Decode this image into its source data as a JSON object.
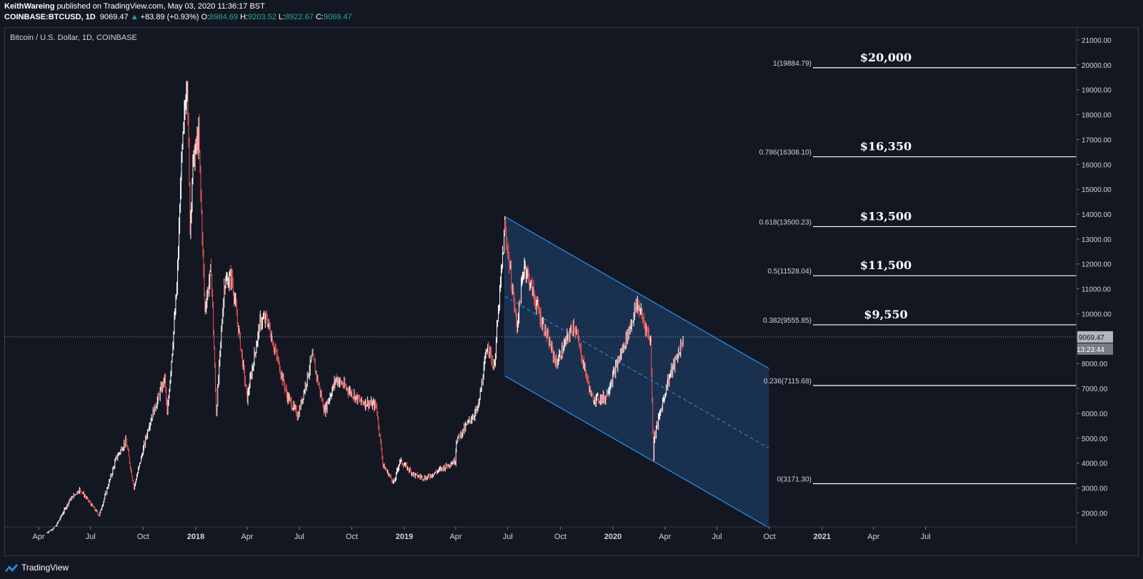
{
  "header": {
    "author": "KeithWareing",
    "published": "published on TradingView.com, May 03, 2020 11:36:17 BST",
    "symbol": "COINBASE:BTCUSD, 1D",
    "last": "9069.47",
    "change": "+83.89 (+0.93%)",
    "o_label": "O:",
    "o_value": "8984.69",
    "h_label": "H:",
    "h_value": "9203.52",
    "l_label": "L:",
    "l_value": "8922.67",
    "c_label": "C:",
    "c_value": "9069.47"
  },
  "brand": {
    "name": "TradingView"
  },
  "colors": {
    "background": "#131722",
    "candle_up": "#ffffff",
    "candle_down": "#ef5350",
    "channel_line": "#2196f3",
    "channel_fill": "#1e3a5f",
    "fib_line": "#ffffff",
    "text": "#d1d4dc"
  },
  "chart_data": {
    "type": "line",
    "title": "Bitcoin / U.S. Dollar, 1D, COINBASE",
    "xlabel": "",
    "ylabel": "",
    "ylim": [
      1200,
      21500
    ],
    "grid": false,
    "x_ticks": [
      "Apr",
      "Jul",
      "Oct",
      "2018",
      "Apr",
      "Jul",
      "Oct",
      "2019",
      "Apr",
      "Jul",
      "Oct",
      "2020",
      "Apr",
      "Jul",
      "Oct",
      "2021",
      "Apr",
      "Jul"
    ],
    "x_tick_dates": [
      "2017-04-01",
      "2017-07-01",
      "2017-10-01",
      "2018-01-01",
      "2018-04-01",
      "2018-07-01",
      "2018-10-01",
      "2019-01-01",
      "2019-04-01",
      "2019-07-01",
      "2019-10-01",
      "2020-01-01",
      "2020-04-01",
      "2020-07-01",
      "2020-10-01",
      "2021-01-01",
      "2021-04-01",
      "2021-07-01"
    ],
    "y_ticks": [
      "21000.00",
      "20000.00",
      "19000.00",
      "18000.00",
      "17000.00",
      "16000.00",
      "15000.00",
      "14000.00",
      "13000.00",
      "12000.00",
      "11000.00",
      "10000.00",
      "9000.00",
      "8000.00",
      "7000.00",
      "6000.00",
      "5000.00",
      "4000.00",
      "3000.00",
      "2000.00"
    ],
    "current_price": {
      "label": "9069.47",
      "countdown": "13:23:44",
      "value": 9069.47
    },
    "series": [
      {
        "name": "BTCUSD",
        "points": [
          [
            "2017-04-15",
            1200
          ],
          [
            "2017-05-01",
            1450
          ],
          [
            "2017-05-25",
            2500
          ],
          [
            "2017-06-12",
            2950
          ],
          [
            "2017-07-16",
            1900
          ],
          [
            "2017-08-15",
            4200
          ],
          [
            "2017-09-01",
            4900
          ],
          [
            "2017-09-15",
            3000
          ],
          [
            "2017-10-12",
            5600
          ],
          [
            "2017-11-08",
            7400
          ],
          [
            "2017-11-12",
            5900
          ],
          [
            "2017-11-29",
            11000
          ],
          [
            "2017-12-07",
            16000
          ],
          [
            "2017-12-17",
            19700
          ],
          [
            "2017-12-22",
            13500
          ],
          [
            "2017-12-27",
            16000
          ],
          [
            "2018-01-06",
            17200
          ],
          [
            "2018-01-17",
            10200
          ],
          [
            "2018-01-28",
            11800
          ],
          [
            "2018-02-06",
            6000
          ],
          [
            "2018-02-20",
            11200
          ],
          [
            "2018-03-05",
            11500
          ],
          [
            "2018-04-01",
            6600
          ],
          [
            "2018-04-24",
            9700
          ],
          [
            "2018-05-05",
            9800
          ],
          [
            "2018-06-10",
            6700
          ],
          [
            "2018-06-29",
            5900
          ],
          [
            "2018-07-24",
            8300
          ],
          [
            "2018-08-14",
            6100
          ],
          [
            "2018-09-04",
            7400
          ],
          [
            "2018-10-15",
            6500
          ],
          [
            "2018-11-13",
            6300
          ],
          [
            "2018-11-25",
            3900
          ],
          [
            "2018-12-14",
            3200
          ],
          [
            "2018-12-24",
            4100
          ],
          [
            "2019-01-20",
            3500
          ],
          [
            "2019-02-08",
            3400
          ],
          [
            "2019-03-31",
            4100
          ],
          [
            "2019-04-02",
            4900
          ],
          [
            "2019-05-10",
            6200
          ],
          [
            "2019-05-27",
            8800
          ],
          [
            "2019-06-07",
            7800
          ],
          [
            "2019-06-26",
            13500
          ],
          [
            "2019-07-17",
            9500
          ],
          [
            "2019-07-30",
            12000
          ],
          [
            "2019-08-28",
            9800
          ],
          [
            "2019-09-24",
            8000
          ],
          [
            "2019-10-25",
            9600
          ],
          [
            "2019-11-25",
            6600
          ],
          [
            "2019-12-18",
            6600
          ],
          [
            "2020-01-20",
            8700
          ],
          [
            "2020-02-13",
            10400
          ],
          [
            "2020-03-07",
            8900
          ],
          [
            "2020-03-12",
            4200
          ],
          [
            "2020-03-13",
            5000
          ],
          [
            "2020-04-06",
            7300
          ],
          [
            "2020-04-29",
            8700
          ],
          [
            "2020-05-03",
            9070
          ]
        ]
      }
    ],
    "fib_levels": [
      {
        "label": "1(19884.79)",
        "value": 19884.79,
        "annotation": "$20,000"
      },
      {
        "label": "0.786(16308.10)",
        "value": 16308.1,
        "annotation": "$16,350"
      },
      {
        "label": "0.618(13500.23)",
        "value": 13500.23,
        "annotation": "$13,500"
      },
      {
        "label": "0.5(11528.04)",
        "value": 11528.04,
        "annotation": "$11,500"
      },
      {
        "label": "0.382(9555.85)",
        "value": 9555.85,
        "annotation": "$9,550"
      },
      {
        "label": "0.236(7115.68)",
        "value": 7115.68,
        "annotation": ""
      },
      {
        "label": "0(3171.30)",
        "value": 3171.3,
        "annotation": ""
      }
    ],
    "channel": {
      "start_date": "2019-06-26",
      "end_date": "2020-09-30",
      "upper": [
        13900,
        7800
      ],
      "mid": [
        10700,
        4600
      ],
      "lower": [
        7500,
        1400
      ]
    }
  }
}
